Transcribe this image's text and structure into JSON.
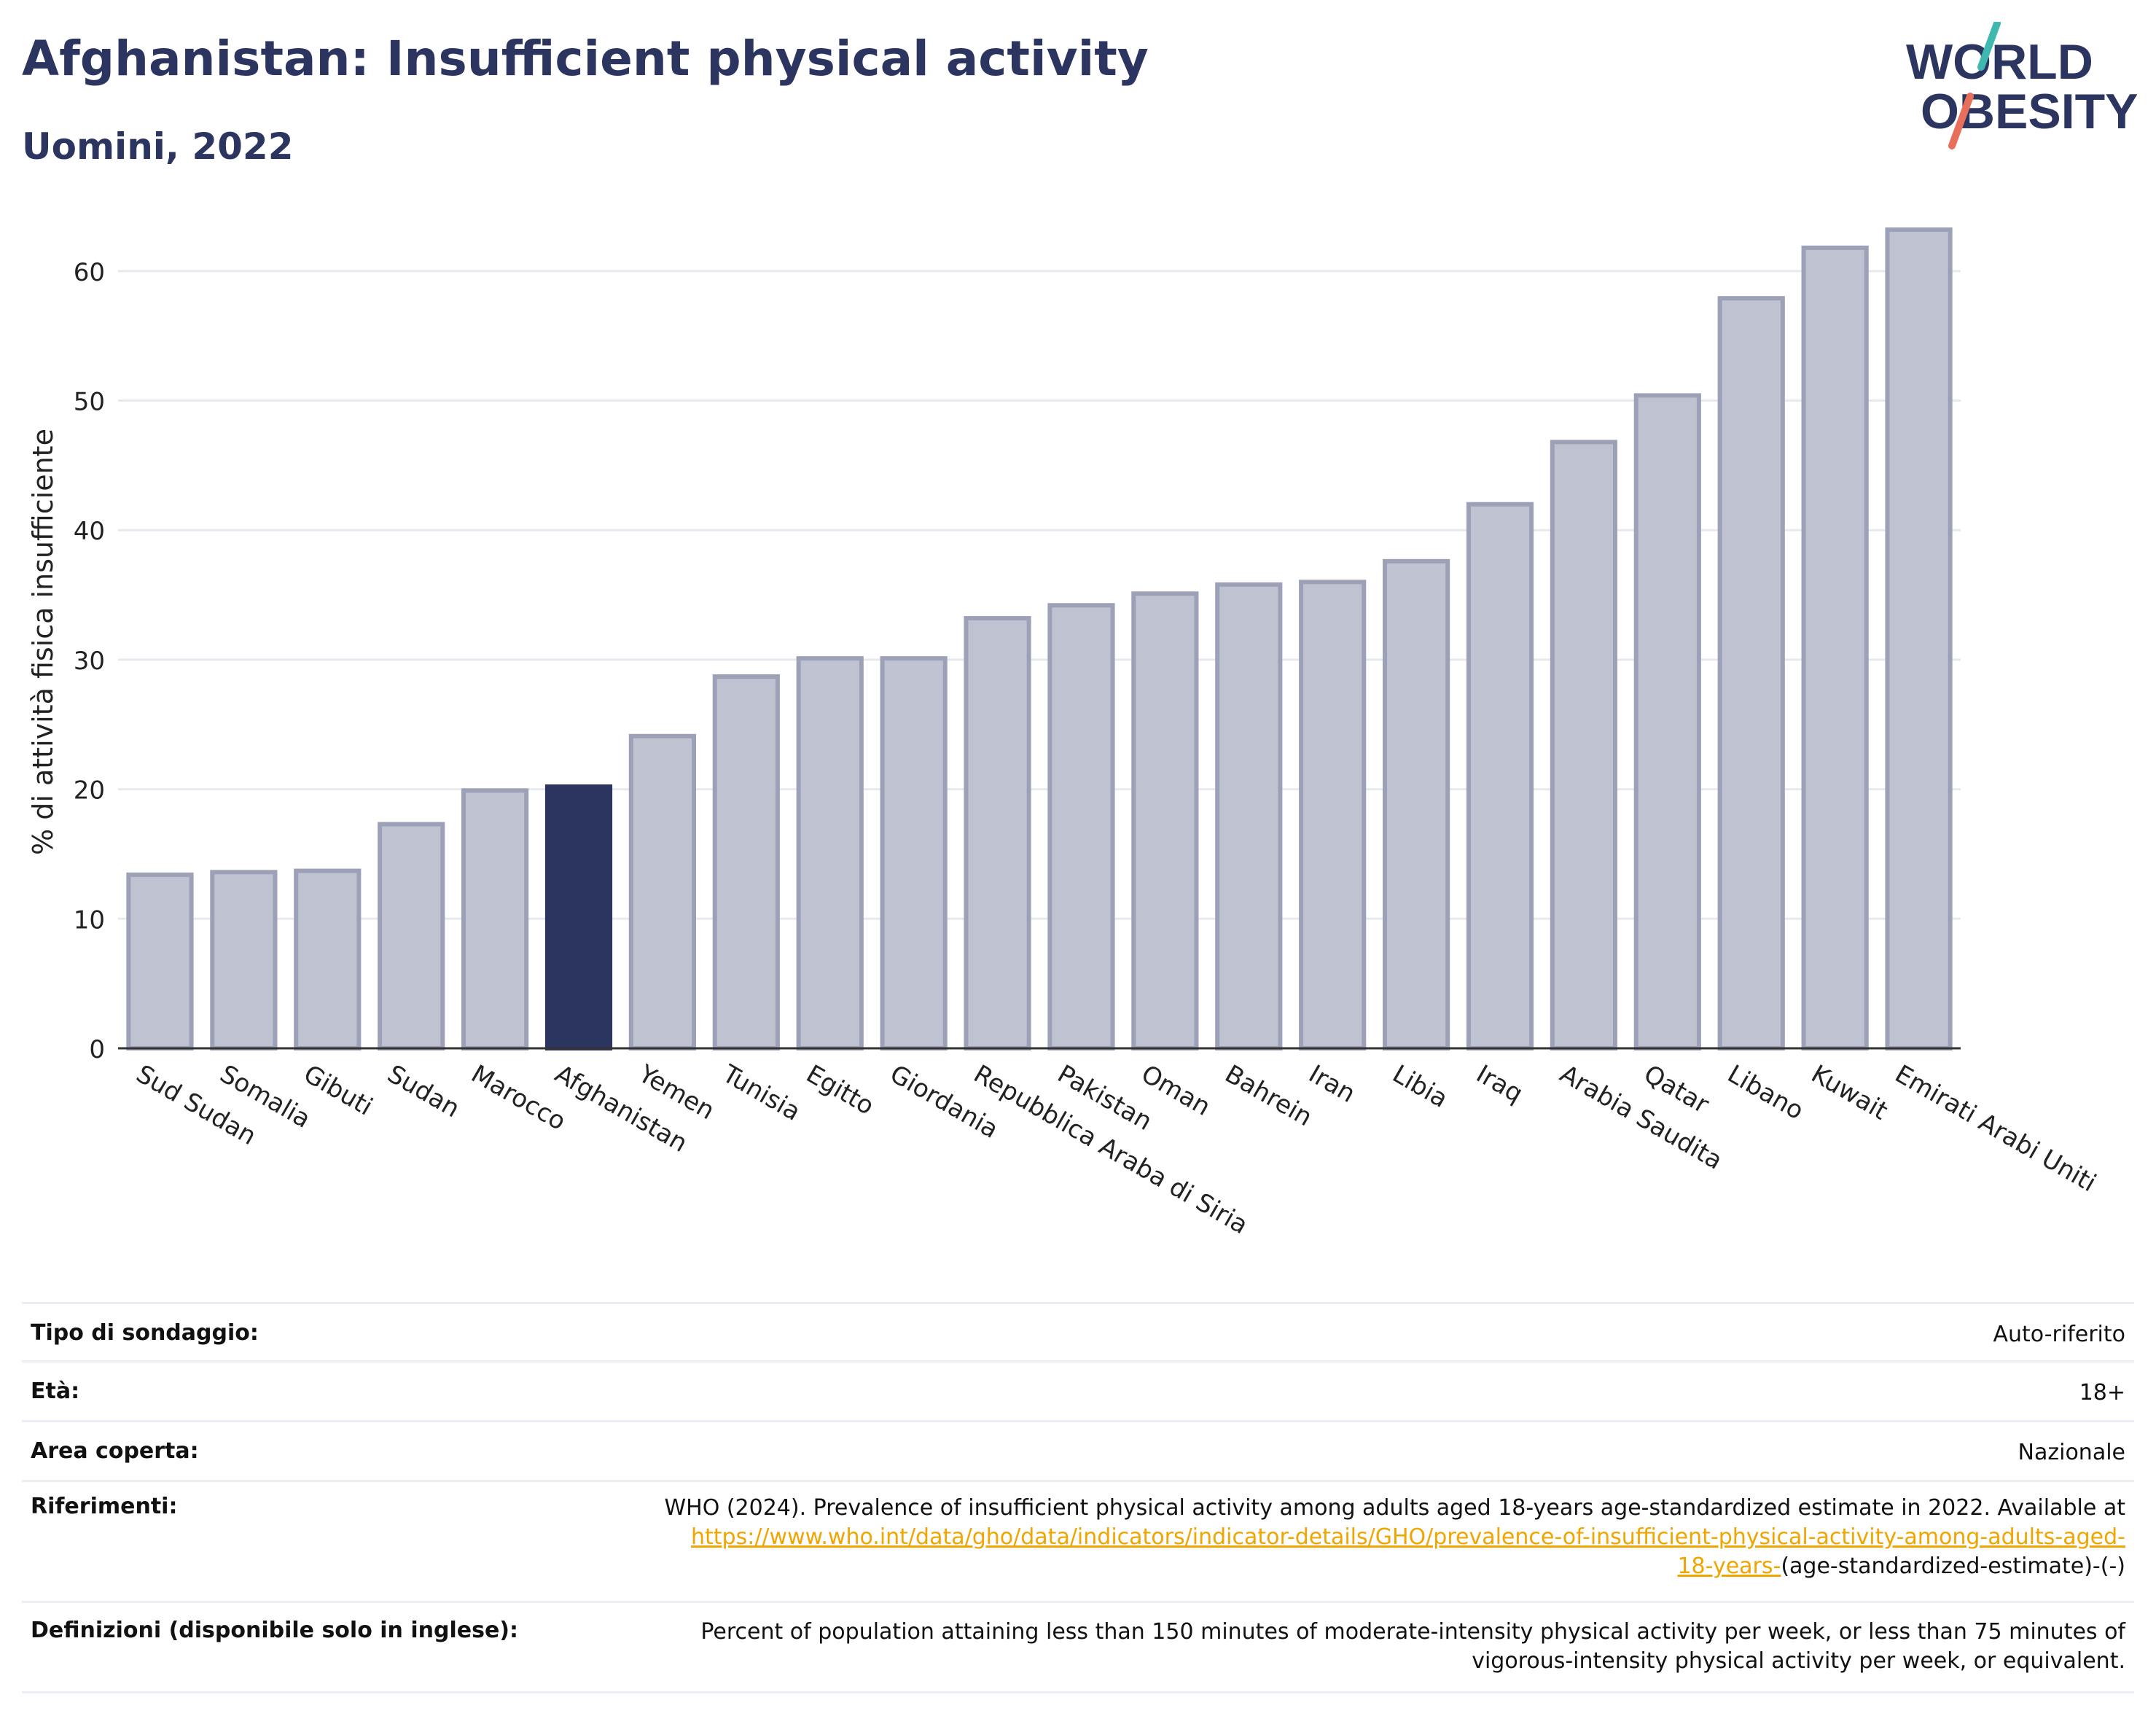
{
  "header": {
    "title": "Afghanistan: Insufficient physical activity",
    "subtitle": "Uomini, 2022"
  },
  "logo": {
    "line1": "WORLD",
    "line2": "OBESITY",
    "accent1": "#3fb8b0",
    "accent2": "#e8705a",
    "text_color": "#2b3560"
  },
  "chart_data": {
    "type": "bar",
    "title": "Afghanistan: Insufficient physical activity",
    "subtitle": "Uomini, 2022",
    "xlabel": "",
    "ylabel": "% di attività fisica insufficiente",
    "ylim": [
      0,
      65
    ],
    "yticks": [
      0,
      10,
      20,
      30,
      40,
      50,
      60
    ],
    "grid": true,
    "highlight": "Afghanistan",
    "colors": {
      "bar": "#bfc3d1",
      "bar_edge": "#9ca1b8",
      "highlight": "#2b3560"
    },
    "categories": [
      "Sud Sudan",
      "Somalia",
      "Gibuti",
      "Sudan",
      "Marocco",
      "Afghanistan",
      "Yemen",
      "Tunisia",
      "Egitto",
      "Giordania",
      "Repubblica Araba di Siria",
      "Pakistan",
      "Oman",
      "Bahrein",
      "Iran",
      "Libia",
      "Iraq",
      "Arabia Saudita",
      "Qatar",
      "Libano",
      "Kuwait",
      "Emirati Arabi Uniti"
    ],
    "values": [
      13.4,
      13.6,
      13.7,
      17.3,
      19.9,
      20.2,
      24.1,
      28.7,
      30.1,
      30.1,
      33.2,
      34.2,
      35.1,
      35.8,
      36.0,
      37.6,
      42.0,
      46.8,
      50.4,
      57.9,
      61.8,
      63.2
    ]
  },
  "info": {
    "survey_label": "Tipo di sondaggio:",
    "survey_value": "Auto-riferito",
    "age_label": "Età:",
    "age_value": "18+",
    "area_label": "Area coperta:",
    "area_value": "Nazionale",
    "refs_label": "Riferimenti:",
    "refs_line1": "WHO (2024). Prevalence of insufficient physical activity among adults aged 18-years age-standardized estimate in 2022. Available at",
    "refs_link_a": "https://www.who.int/data/gho/data/indicators/indicator-details/GHO/prevalence-of-insufficient-physical-activity-among-adults-aged-",
    "refs_link_b": "18-years-",
    "refs_tail": "(age-standardized-estimate)-(-)",
    "defs_label": "Definizioni (disponibile solo in inglese):",
    "defs_line1": "Percent of population attaining less than 150 minutes of moderate-intensity physical activity per week, or less than 75 minutes of",
    "defs_line2": "vigorous-intensity physical activity per week, or equivalent."
  }
}
